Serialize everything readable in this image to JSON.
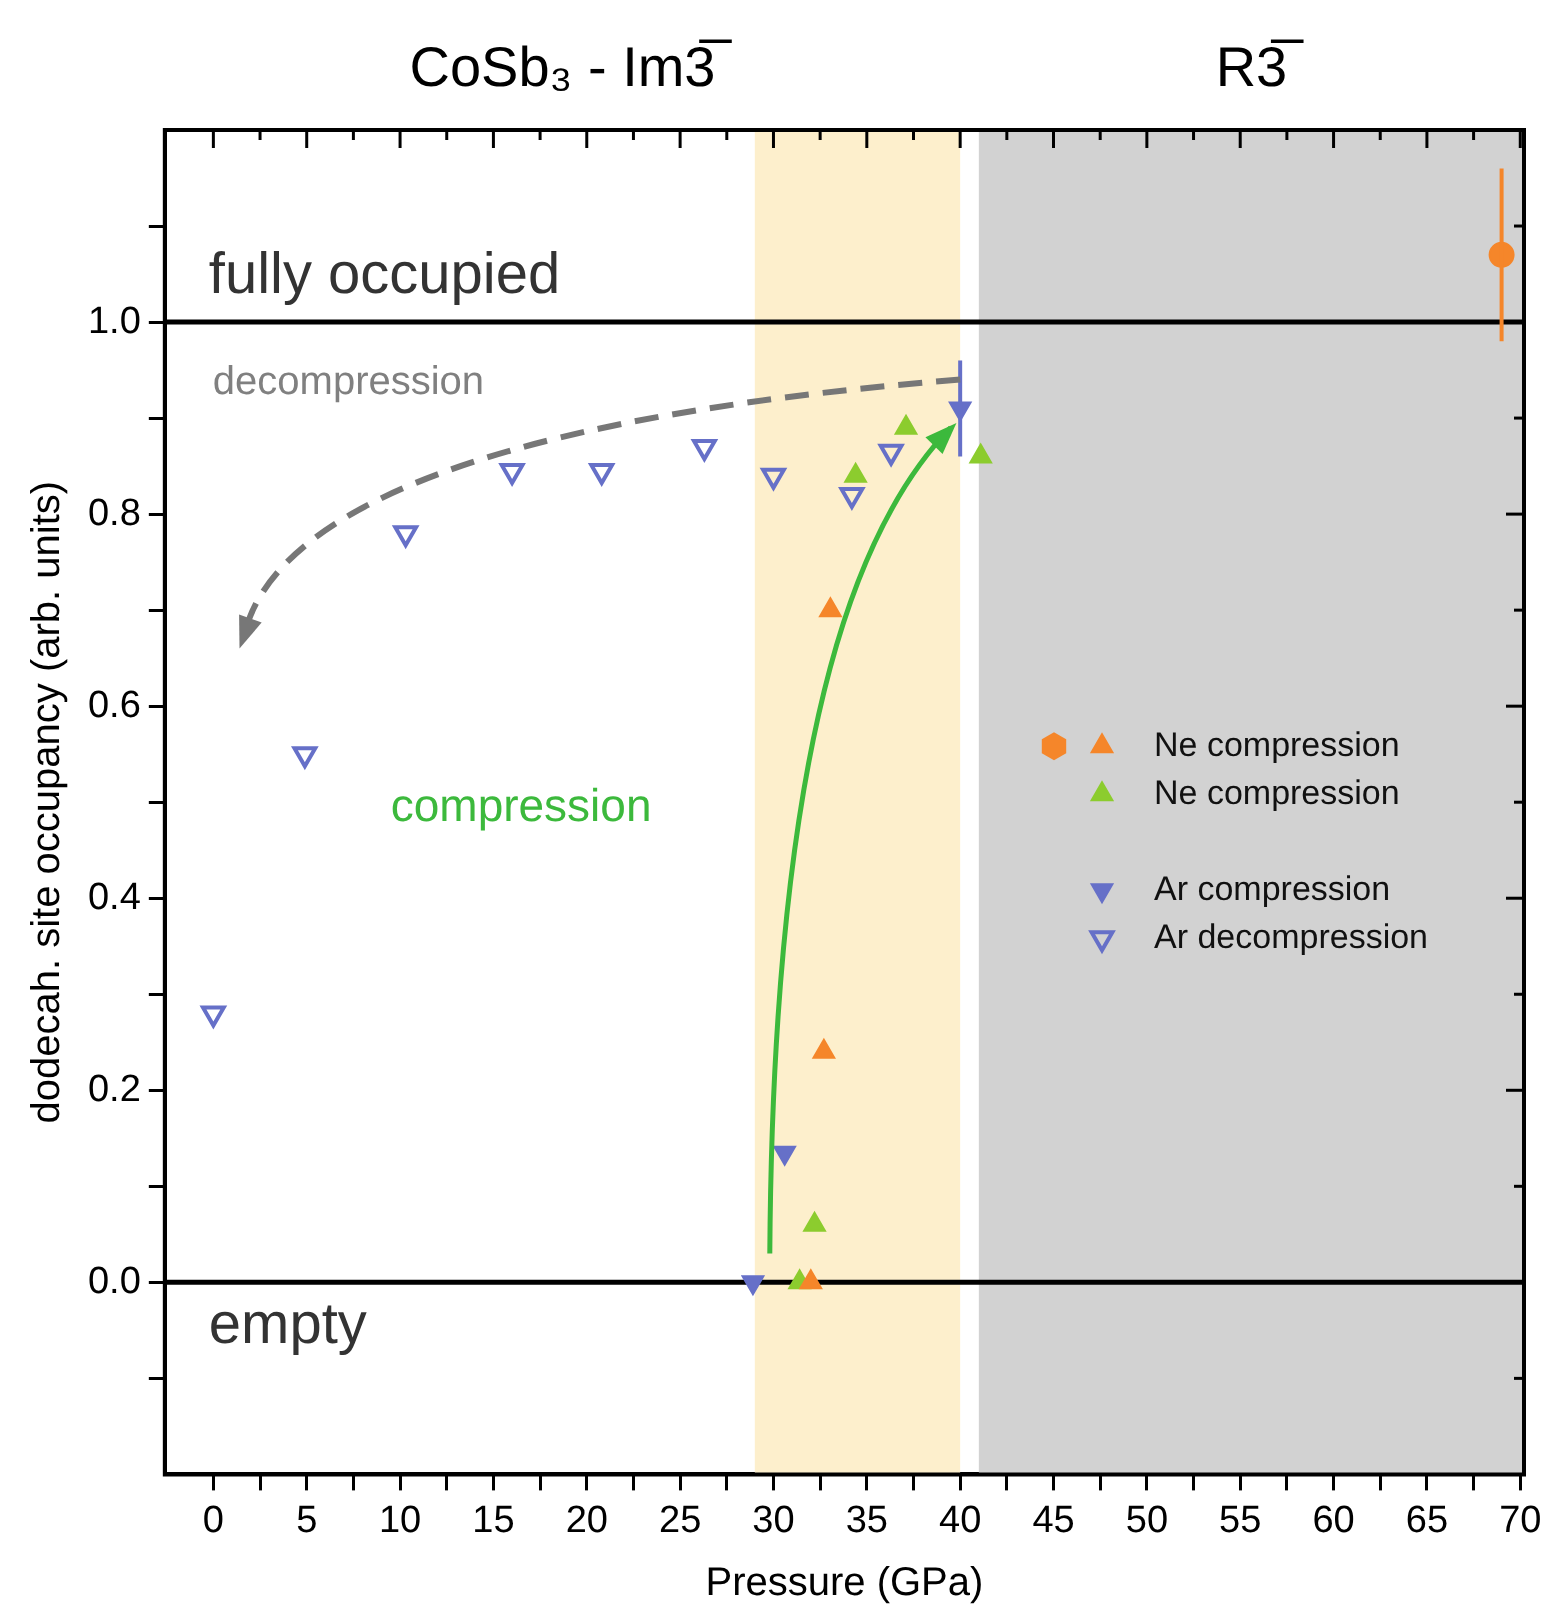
{
  "chart_data": {
    "type": "scatter",
    "xlabel": "Pressure (GPa)",
    "ylabel": "dodecah. site occupancy (arb. units)",
    "xlim": [
      -2.6,
      70.2
    ],
    "ylim": [
      -0.2,
      1.2
    ],
    "xticks": [
      0,
      {
        "value": 2.5,
        "label": null
      },
      5,
      {
        "value": 7.5,
        "label": null
      },
      10,
      {
        "value": 12.5,
        "label": null
      },
      15,
      {
        "value": 17.5,
        "label": null
      },
      20,
      {
        "value": 22.5,
        "label": null
      },
      25,
      {
        "value": 27.5,
        "label": null
      },
      30,
      {
        "value": 32.5,
        "label": null
      },
      35,
      {
        "value": 37.5,
        "label": null
      },
      40,
      {
        "value": 42.5,
        "label": null
      },
      45,
      {
        "value": 47.5,
        "label": null
      },
      50,
      {
        "value": 52.5,
        "label": null
      },
      55,
      {
        "value": 57.5,
        "label": null
      },
      60,
      {
        "value": 62.5,
        "label": null
      },
      65,
      {
        "value": 67.5,
        "label": null
      },
      70
    ],
    "yticks": [
      {
        "value": -0.1,
        "label": null
      },
      {
        "value": 0,
        "label": "0.0"
      },
      {
        "value": 0.1,
        "label": null
      },
      {
        "value": 0.2,
        "label": "0.2"
      },
      {
        "value": 0.3,
        "label": null
      },
      {
        "value": 0.4,
        "label": "0.4"
      },
      {
        "value": 0.5,
        "label": null
      },
      {
        "value": 0.6,
        "label": "0.6"
      },
      {
        "value": 0.7,
        "label": null
      },
      {
        "value": 0.8,
        "label": "0.8"
      },
      {
        "value": 0.9,
        "label": null
      },
      {
        "value": 1,
        "label": "1.0"
      },
      {
        "value": 1.1,
        "label": null
      }
    ],
    "grid": false,
    "legend": "right",
    "series": [
      {
        "color": "#f5862a",
        "marker": "circle",
        "x": [
          69
        ],
        "values": [
          1.07
        ],
        "errors": [
          [
            0.98,
            1.16
          ]
        ]
      },
      {
        "name": "Ne compression",
        "color": "#f5862a",
        "marker": "triangle",
        "x": [
          32.0,
          32.7,
          33.05
        ],
        "values": [
          0.0,
          0.24,
          0.7
        ]
      },
      {
        "name": "Ne compression",
        "color": "#8ccc2e",
        "marker": "triangle",
        "x": [
          31.4,
          32.2,
          34.4,
          37.1,
          41.1
        ],
        "values": [
          0.0,
          0.06,
          0.84,
          0.89,
          0.86
        ]
      },
      {
        "name": "Ar compression",
        "color": "#6670c8",
        "marker": "triangle-down",
        "x": [
          28.9,
          30.6,
          40.0
        ],
        "values": [
          0.0,
          0.135,
          0.91
        ],
        "errors": [
          null,
          null,
          [
            0.86,
            0.96
          ]
        ]
      },
      {
        "name": "Ar decompression",
        "color": "#6670c8",
        "marker": "triangle-down-open",
        "x": [
          0,
          4.9,
          10.3,
          16.0,
          20.8,
          26.3,
          30.0,
          34.2,
          36.3
        ],
        "values": [
          0.28,
          0.55,
          0.78,
          0.845,
          0.845,
          0.87,
          0.84,
          0.82,
          0.865
        ]
      }
    ],
    "ref_lines": [
      {
        "axis": "y",
        "value": 1,
        "label": "fully occupied",
        "color": "#000000"
      },
      {
        "axis": "y",
        "value": 0,
        "label": "empty",
        "color": "#000000"
      }
    ],
    "bands": [
      {
        "axis": "x",
        "from": 29,
        "to": 40,
        "label": null,
        "color": "#fdefcc"
      },
      {
        "axis": "x",
        "from": 41,
        "to": 70.2,
        "label": "R3̅",
        "color": "#d2d2d2"
      }
    ],
    "annotations": [
      "CoSb₃ - Im3̅",
      "decompression",
      "compression"
    ]
  }
}
